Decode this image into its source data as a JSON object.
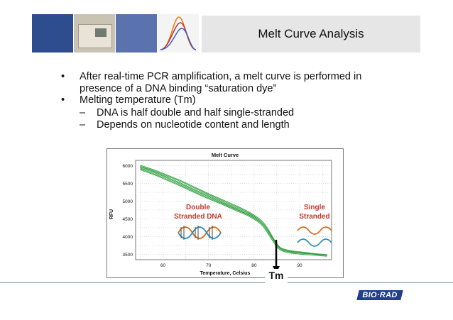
{
  "slide": {
    "title": "Melt Curve Analysis",
    "bullets": [
      {
        "level": 1,
        "marker": "•",
        "text": "After real-time PCR amplification, a melt curve is performed in presence of a DNA binding “saturation dye”"
      },
      {
        "level": 1,
        "marker": "•",
        "text": "Melting temperature (Tm)"
      },
      {
        "level": 2,
        "marker": "–",
        "text": "DNA is half double and half single-stranded"
      },
      {
        "level": 2,
        "marker": "–",
        "text": "Depends on nucleotide content and length"
      }
    ],
    "tm_label": "Tm",
    "logo_text": "BIO·RAD",
    "colors": {
      "header_blue": "#2e4d8e",
      "header_blue_light": "#5a72ad",
      "title_box": "#e6e6e6",
      "curve": "#2a9a3a",
      "annotation": "#c0392b",
      "logo_blue": "#1f3f8f"
    }
  },
  "chart_data": {
    "type": "line",
    "title": "Melt Curve",
    "xlabel": "Temperature, Celsius",
    "ylabel": "RFU",
    "xlim": [
      54,
      97
    ],
    "ylim": [
      3350,
      6150
    ],
    "xticks": [
      "60",
      "70",
      "80",
      "90"
    ],
    "yticks": [
      "3500",
      "4000",
      "4500",
      "5000",
      "5500",
      "6000"
    ],
    "grid": true,
    "annotations": [
      "Double",
      "Stranded DNA",
      "Single",
      "Stranded"
    ],
    "x": [
      55,
      58,
      61,
      64,
      67,
      70,
      73,
      76,
      79,
      81,
      82,
      83,
      84,
      85,
      86,
      88,
      90,
      92,
      94,
      96
    ],
    "series": [
      {
        "values": [
          6000,
          5870,
          5720,
          5560,
          5380,
          5200,
          5030,
          4860,
          4670,
          4500,
          4380,
          4200,
          3980,
          3780,
          3660,
          3590,
          3560,
          3530,
          3500,
          3480
        ]
      },
      {
        "values": [
          5950,
          5820,
          5660,
          5490,
          5310,
          5140,
          4970,
          4800,
          4620,
          4460,
          4340,
          4160,
          3950,
          3750,
          3640,
          3570,
          3540,
          3510,
          3490,
          3470
        ]
      },
      {
        "values": [
          5900,
          5760,
          5600,
          5430,
          5250,
          5080,
          4920,
          4750,
          4580,
          4420,
          4300,
          4120,
          3920,
          3730,
          3620,
          3550,
          3520,
          3500,
          3480,
          3460
        ]
      }
    ]
  }
}
